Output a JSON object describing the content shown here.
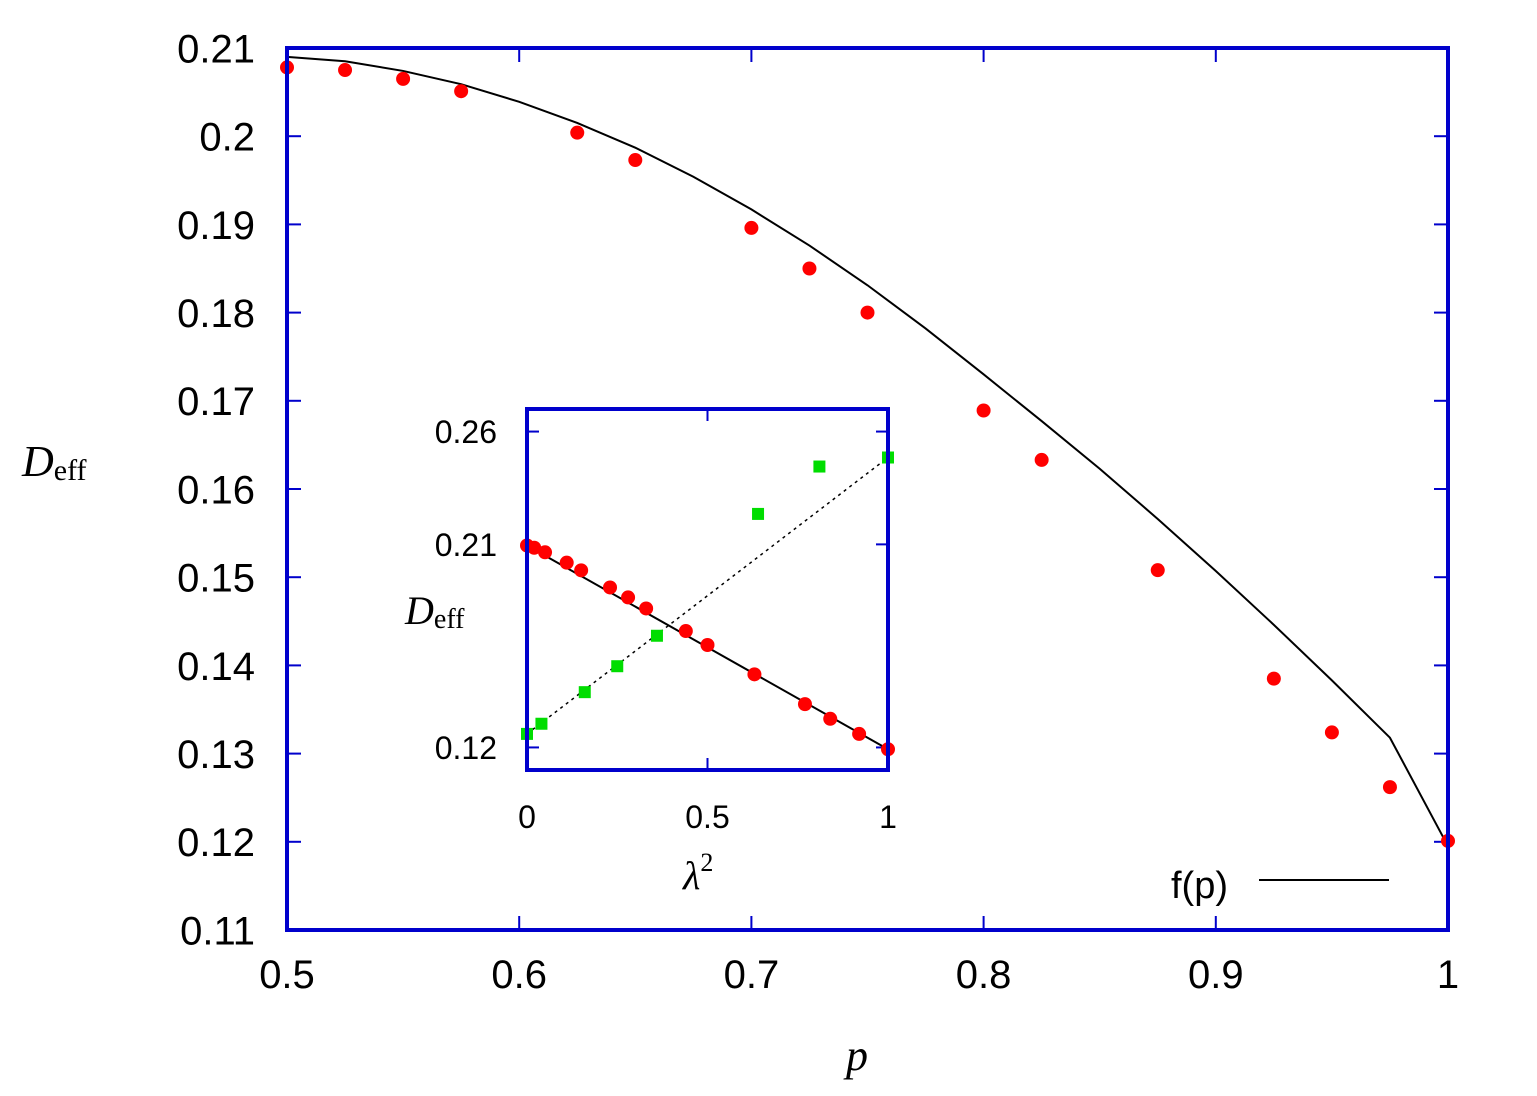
{
  "colors": {
    "frame": "#0000cc",
    "points": "#ff0000",
    "squares": "#00dd00",
    "curve": "#000000"
  },
  "chart_data": [
    {
      "type": "scatter",
      "title": "",
      "xlabel": "p",
      "ylabel_main": "D",
      "ylabel_sub": "eff",
      "xlim": [
        0.5,
        1.0
      ],
      "ylim": [
        0.11,
        0.21
      ],
      "x_ticks": [
        0.5,
        0.6,
        0.7,
        0.8,
        0.9,
        1.0
      ],
      "x_tick_labels": [
        "0.5",
        "0.6",
        "0.7",
        "0.8",
        "0.9",
        "1"
      ],
      "y_ticks": [
        0.11,
        0.12,
        0.13,
        0.14,
        0.15,
        0.16,
        0.17,
        0.18,
        0.19,
        0.2,
        0.21
      ],
      "y_tick_labels": [
        "0.11",
        "0.12",
        "0.13",
        "0.14",
        "0.15",
        "0.16",
        "0.17",
        "0.18",
        "0.19",
        "0.2",
        "0.21"
      ],
      "grid": false,
      "legend_position": "bottom-right",
      "series": [
        {
          "kind": "points",
          "x": [
            0.5,
            0.525,
            0.55,
            0.575,
            0.625,
            0.65,
            0.7,
            0.725,
            0.75,
            0.8,
            0.825,
            0.875,
            0.925,
            0.95,
            0.975,
            1.0
          ],
          "y": [
            0.2078,
            0.2075,
            0.2065,
            0.2051,
            0.2004,
            0.1973,
            0.1896,
            0.185,
            0.18,
            0.1689,
            0.1633,
            0.1508,
            0.1385,
            0.1324,
            0.1262,
            0.1201
          ]
        },
        {
          "kind": "line",
          "name": "f(p)",
          "x": [
            0.5,
            0.525,
            0.55,
            0.575,
            0.6,
            0.625,
            0.65,
            0.675,
            0.7,
            0.725,
            0.75,
            0.775,
            0.8,
            0.825,
            0.85,
            0.875,
            0.9,
            0.925,
            0.95,
            0.975,
            1.0
          ],
          "y": [
            0.209,
            0.2085,
            0.2074,
            0.2059,
            0.2039,
            0.2015,
            0.1987,
            0.1954,
            0.1917,
            0.1876,
            0.1831,
            0.1782,
            0.173,
            0.1677,
            0.1623,
            0.1566,
            0.1507,
            0.1446,
            0.1383,
            0.1318,
            0.1195
          ]
        }
      ]
    },
    {
      "type": "scatter",
      "title": "",
      "xlabel": "λ",
      "xlabel_sup": "2",
      "ylabel_main": "D",
      "ylabel_sub": "eff",
      "xlim": [
        0,
        1
      ],
      "ylim": [
        0.11,
        0.27
      ],
      "x_ticks": [
        0,
        0.5,
        1
      ],
      "x_tick_labels": [
        "0",
        "0.5",
        "1"
      ],
      "y_ticks": [
        0.12,
        0.21,
        0.26
      ],
      "y_tick_labels": [
        "0.12",
        "0.21",
        "0.26"
      ],
      "grid": false,
      "series": [
        {
          "kind": "points",
          "x": [
            0,
            0.02,
            0.05,
            0.11,
            0.15,
            0.23,
            0.28,
            0.33,
            0.44,
            0.5,
            0.63,
            0.77,
            0.84,
            0.92,
            1.0
          ],
          "y": [
            0.2095,
            0.2085,
            0.2065,
            0.2019,
            0.1985,
            0.1909,
            0.1865,
            0.1816,
            0.1716,
            0.1654,
            0.1524,
            0.1392,
            0.1327,
            0.126,
            0.1192
          ]
        },
        {
          "kind": "line",
          "x": [
            0,
            1
          ],
          "y": [
            0.2095,
            0.1192
          ]
        },
        {
          "kind": "squares",
          "x": [
            0,
            0.04,
            0.16,
            0.25,
            0.36,
            0.64,
            0.81,
            1.0
          ],
          "y": [
            0.126,
            0.1305,
            0.1445,
            0.156,
            0.1695,
            0.2235,
            0.2445,
            0.2485
          ]
        },
        {
          "kind": "dotted-line",
          "x": [
            0,
            1
          ],
          "y": [
            0.126,
            0.2485
          ]
        }
      ]
    }
  ]
}
